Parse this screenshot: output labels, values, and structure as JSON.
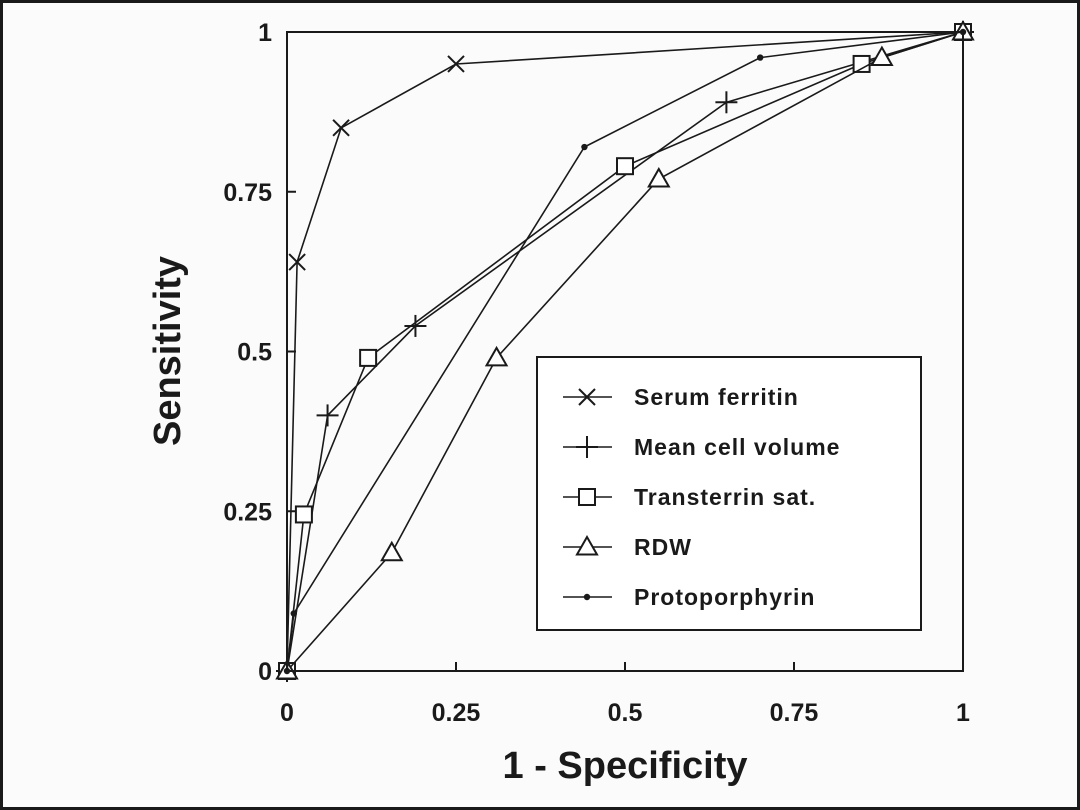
{
  "chart_data": {
    "type": "line",
    "title": "",
    "xlabel": "1 - Specificity",
    "ylabel": "Sensitivity",
    "xlim": [
      0,
      1
    ],
    "ylim": [
      0,
      1
    ],
    "x_ticks": [
      "0",
      "0.25",
      "0.5",
      "0.75",
      "1"
    ],
    "y_ticks": [
      "0",
      "0.25",
      "0.5",
      "0.75",
      "1"
    ],
    "grid": false,
    "legend_position": "bottom-right",
    "series": [
      {
        "name": "Serum ferritin",
        "marker": "x-mark",
        "points": [
          [
            0,
            0
          ],
          [
            0.015,
            0.64
          ],
          [
            0.08,
            0.85
          ],
          [
            0.25,
            0.95
          ],
          [
            1,
            1
          ]
        ]
      },
      {
        "name": "Mean cell volume",
        "marker": "plus",
        "points": [
          [
            0,
            0
          ],
          [
            0.06,
            0.4
          ],
          [
            0.19,
            0.54
          ],
          [
            0.65,
            0.89
          ],
          [
            1,
            1
          ]
        ]
      },
      {
        "name": "Transterrin sat.",
        "marker": "square",
        "points": [
          [
            0,
            0
          ],
          [
            0.025,
            0.245
          ],
          [
            0.12,
            0.49
          ],
          [
            0.5,
            0.79
          ],
          [
            0.85,
            0.95
          ],
          [
            1,
            1
          ]
        ]
      },
      {
        "name": "RDW",
        "marker": "triangle",
        "points": [
          [
            0,
            0
          ],
          [
            0.155,
            0.185
          ],
          [
            0.31,
            0.49
          ],
          [
            0.55,
            0.77
          ],
          [
            0.88,
            0.96
          ],
          [
            1,
            1
          ]
        ]
      },
      {
        "name": "Protoporphyrin",
        "marker": "dot",
        "points": [
          [
            0,
            0
          ],
          [
            0.01,
            0.09
          ],
          [
            0.44,
            0.82
          ],
          [
            0.7,
            0.96
          ],
          [
            1,
            1
          ]
        ]
      }
    ]
  },
  "colors": {
    "ink": "#1a1a1a",
    "background": "#fbfbfb"
  }
}
